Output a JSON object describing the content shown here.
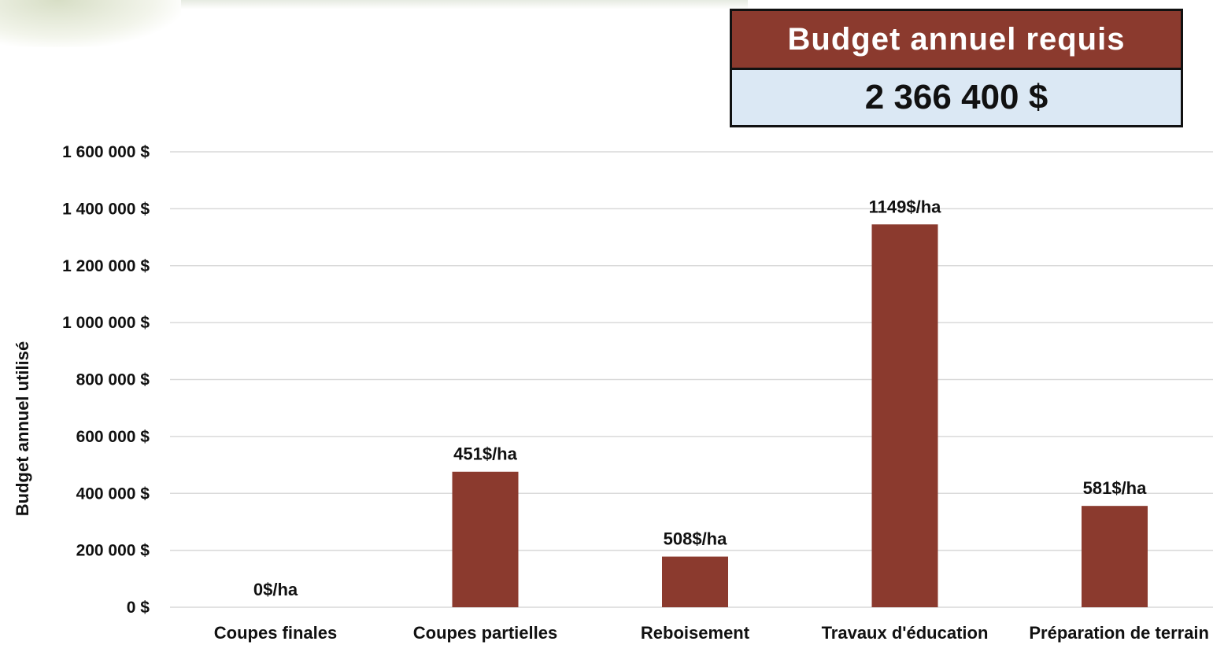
{
  "budget_box": {
    "title": "Budget annuel requis",
    "value": "2 366 400 $"
  },
  "colors": {
    "bar": "#8b3a2e",
    "header": "#8b3a2e",
    "value_bg": "#dbe8f4",
    "grid": "#d9d9d9"
  },
  "chart_data": {
    "type": "bar",
    "categories": [
      "Coupes finales",
      "Coupes partielles",
      "Reboisement",
      "Travaux d'éducation",
      "Préparation de terrain"
    ],
    "values": [
      0,
      476000,
      178000,
      1345000,
      356000
    ],
    "data_labels": [
      "0$/ha",
      "451$/ha",
      "508$/ha",
      "1149$/ha",
      "581$/ha"
    ],
    "ylabel": "Budget annuel utilisé",
    "xlabel": "",
    "ylim": [
      0,
      1600000
    ],
    "yticks": [
      0,
      200000,
      400000,
      600000,
      800000,
      1000000,
      1200000,
      1400000,
      1600000
    ],
    "ytick_labels": [
      "0 $",
      "200 000 $",
      "400 000 $",
      "600 000 $",
      "800 000 $",
      "1 000 000 $",
      "1 200 000 $",
      "1 400 000 $",
      "1 600 000 $"
    ],
    "grid": true,
    "legend": "none"
  }
}
